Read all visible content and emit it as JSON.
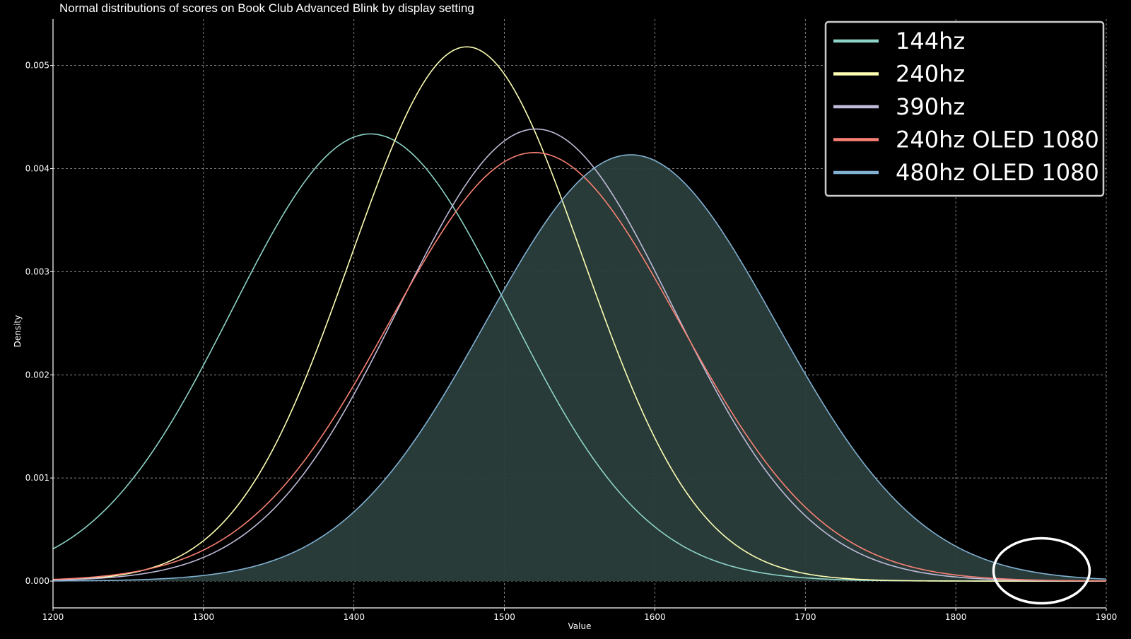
{
  "chart_data": {
    "type": "line",
    "title": "Normal distributions of scores on Book Club Advanced Blink by display setting",
    "xlabel": "Value",
    "ylabel": "Density",
    "xlim": [
      1200,
      1900
    ],
    "ylim": [
      -0.00026,
      0.00545
    ],
    "xticks": [
      1200,
      1300,
      1400,
      1500,
      1600,
      1700,
      1800,
      1900
    ],
    "yticks": [
      0.0,
      0.001,
      0.002,
      0.003,
      0.004,
      0.005
    ],
    "ytick_labels": [
      "0.000",
      "0.001",
      "0.002",
      "0.003",
      "0.004",
      "0.005"
    ],
    "grid": true,
    "legend_position": "top-right",
    "series": [
      {
        "name": "144hz",
        "mean": 1411,
        "std": 92,
        "color": "#8dd3c7",
        "filled": false
      },
      {
        "name": "240hz",
        "mean": 1475,
        "std": 77,
        "color": "#feffb3",
        "filled": false
      },
      {
        "name": "390hz",
        "mean": 1521,
        "std": 91,
        "color": "#bfbbd9",
        "filled": false
      },
      {
        "name": "240hz OLED 1080",
        "mean": 1520,
        "std": 96,
        "color": "#fa8174",
        "filled": false
      },
      {
        "name": "480hz OLED 1080",
        "mean": 1584,
        "std": 96.5,
        "color": "#81b1d2",
        "filled": true,
        "fill_color": "#2a3e3c"
      }
    ],
    "annotations": [
      {
        "type": "ellipse",
        "center_x": 1857,
        "center_y": 0.0001,
        "stroke": "#ffffff"
      }
    ]
  }
}
